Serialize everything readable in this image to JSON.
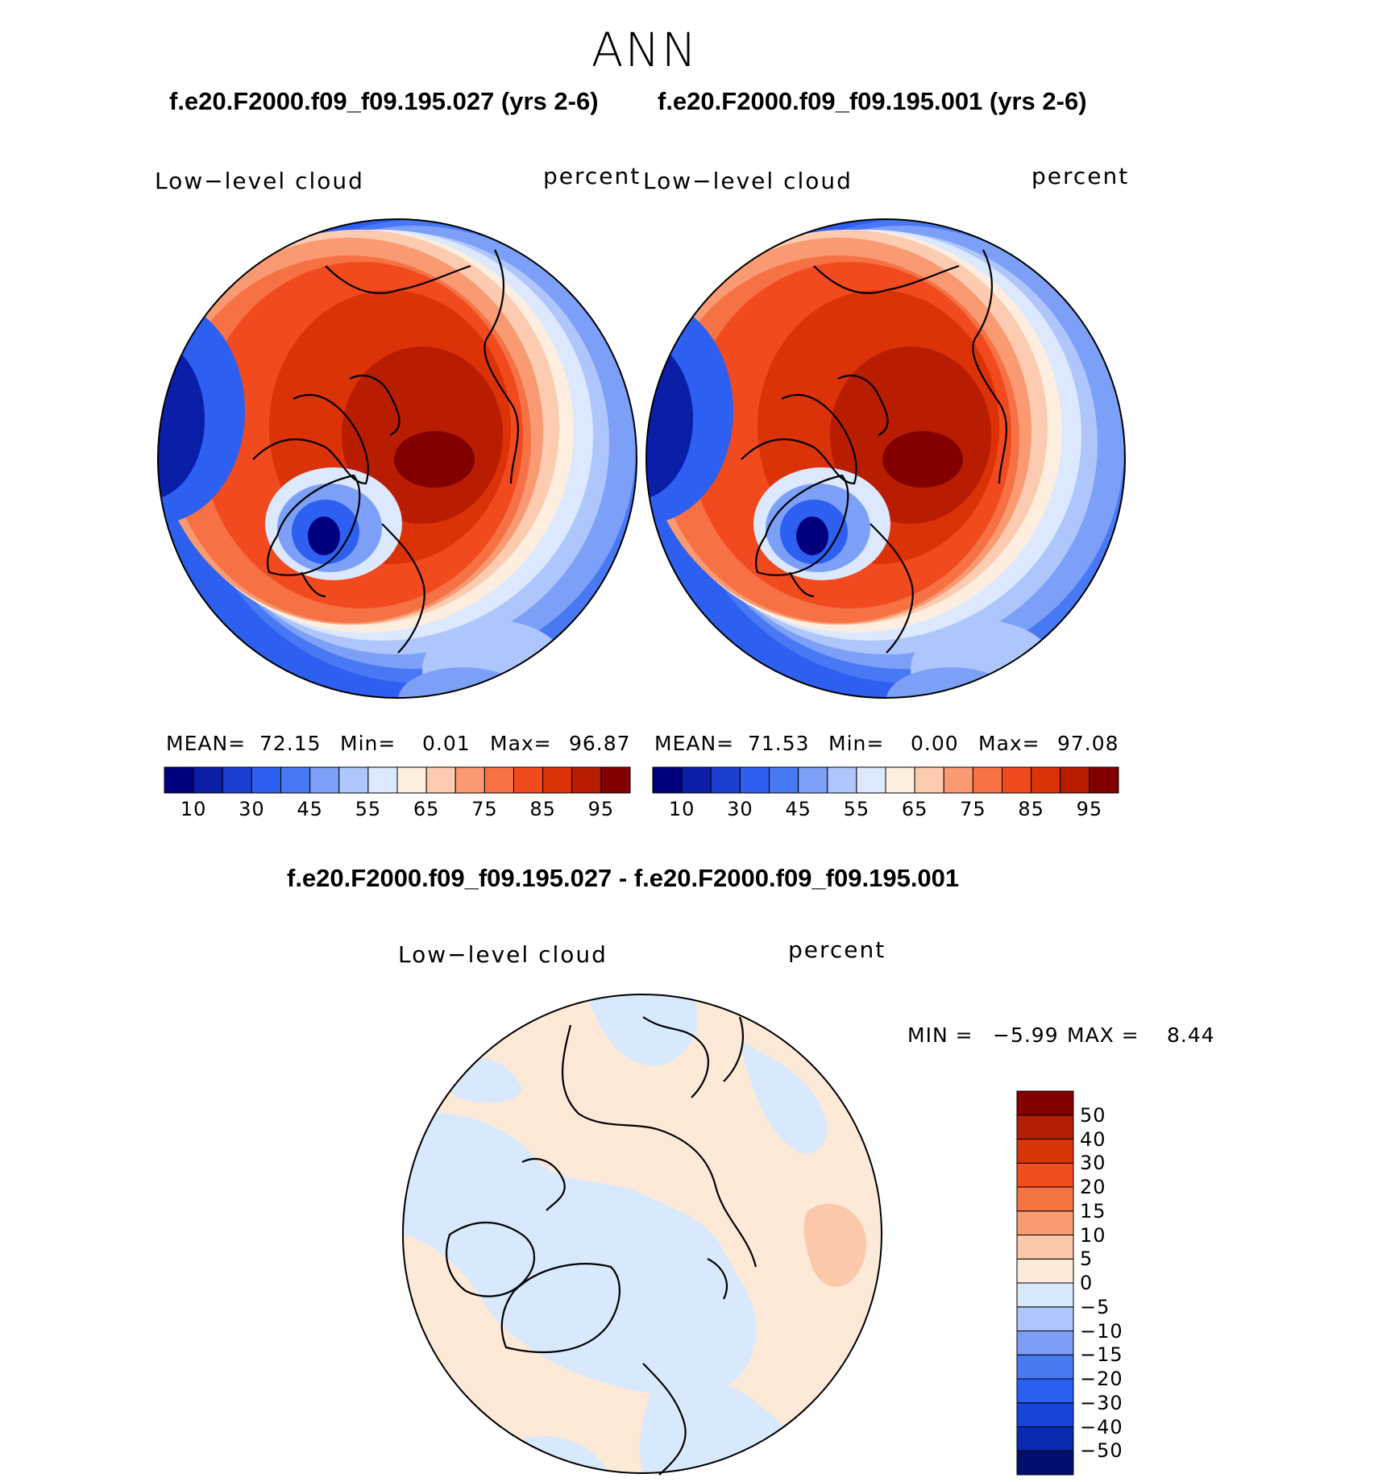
{
  "figure": {
    "title": "ANN"
  },
  "panel_left": {
    "case_title": "f.e20.F2000.f09_f09.195.027 (yrs 2-6)",
    "variable_label": "Low−level cloud",
    "units_label": "percent",
    "mean_label": "MEAN=",
    "mean_value": "72.15",
    "min_label": "Min=",
    "min_value": "0.01",
    "max_label": "Max=",
    "max_value": "96.87"
  },
  "panel_right": {
    "case_title": "f.e20.F2000.f09_f09.195.001 (yrs 2-6)",
    "variable_label": "Low−level cloud",
    "units_label": "percent",
    "mean_label": "MEAN=",
    "mean_value": "71.53",
    "min_label": "Min=",
    "min_value": "0.00",
    "max_label": "Max=",
    "max_value": "97.08"
  },
  "panel_diff": {
    "case_title": "f.e20.F2000.f09_f09.195.027 - f.e20.F2000.f09_f09.195.001",
    "variable_label": "Low−level cloud",
    "units_label": "percent",
    "min_label": "MIN =",
    "min_value": "−5.99",
    "max_label": "MAX =",
    "max_value": "8.44"
  },
  "colorbar_abs": {
    "colors": [
      "#00007e",
      "#0a1ea8",
      "#1c3fd1",
      "#2d5ff0",
      "#4978f5",
      "#7c9ff8",
      "#aec6fb",
      "#dbe8fd",
      "#fdeedf",
      "#fccbb0",
      "#f99a72",
      "#f67245",
      "#f24a1f",
      "#dc3208",
      "#b81d02",
      "#820000"
    ],
    "tick_labels": [
      "10",
      "30",
      "45",
      "55",
      "65",
      "75",
      "85",
      "95"
    ],
    "tick_positions_idx": [
      1,
      3,
      5,
      7,
      9,
      11,
      13,
      15
    ]
  },
  "colorbar_diff": {
    "colors": [
      "#000e6e",
      "#0a2ab0",
      "#1745d8",
      "#2a5fef",
      "#4a7af3",
      "#7c9df6",
      "#aec6fb",
      "#d8e8fd",
      "#fde9d8",
      "#fbc8aa",
      "#f99b72",
      "#f47343",
      "#f24d1e",
      "#da3409",
      "#b21f02",
      "#820000"
    ],
    "tick_labels": [
      "50",
      "40",
      "30",
      "20",
      "15",
      "10",
      "5",
      "0",
      "−5",
      "−10",
      "−15",
      "−20",
      "−30",
      "−40",
      "−50"
    ]
  },
  "map_data": {
    "projection": "north-polar-stereographic",
    "abs_fields": "low-level cloud fraction, high (>80) over central Arctic, low (<30) over Greenland interior and midlatitude continents",
    "diff_field": "small differences between -5 and +5 with a patch of 5 to 10 over the North Pacific"
  }
}
